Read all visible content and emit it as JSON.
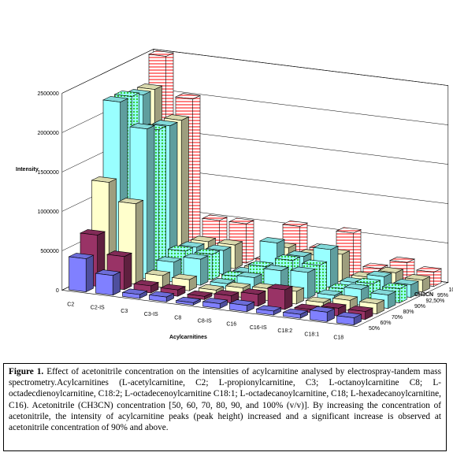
{
  "chart_data": {
    "type": "bar",
    "xlabel": "Acylcarnitines",
    "ylabel": "Intensity",
    "zlabel": "CH3CN",
    "ylim": [
      0,
      2500000
    ],
    "yticks": [
      0,
      500000,
      1000000,
      1500000,
      2000000,
      2500000
    ],
    "categories": [
      "C2",
      "C2-IS",
      "C3",
      "C3-IS",
      "C8",
      "C8-IS",
      "C16",
      "C16-IS",
      "C18:2",
      "C18:1",
      "C18"
    ],
    "series": [
      {
        "name": "50%",
        "color": "#8080ff",
        "values": [
          420000,
          250000,
          50000,
          60000,
          30000,
          60000,
          80000,
          50000,
          50000,
          120000,
          90000
        ]
      },
      {
        "name": "60%",
        "color": "#993366",
        "values": [
          650000,
          420000,
          90000,
          80000,
          40000,
          90000,
          150000,
          250000,
          40000,
          100000,
          100000
        ]
      },
      {
        "name": "70%",
        "color": "#ffffcc",
        "values": [
          1250000,
          1020000,
          150000,
          140000,
          50000,
          120000,
          150000,
          160000,
          60000,
          130000,
          130000
        ]
      },
      {
        "name": "80%",
        "color": "#99ffff",
        "values": [
          2200000,
          1900000,
          250000,
          330000,
          60000,
          180000,
          310000,
          330000,
          80000,
          200000,
          170000
        ]
      },
      {
        "name": "90%",
        "color": "#66ff66",
        "values": [
          2200000,
          1820000,
          320000,
          320000,
          80000,
          250000,
          370000,
          350000,
          90000,
          200000,
          180000
        ]
      },
      {
        "name": "92,50%",
        "color": "#99ffff",
        "values": [
          2150000,
          1800000,
          300000,
          300000,
          60000,
          480000,
          350000,
          480000,
          100000,
          220000,
          160000
        ]
      },
      {
        "name": "95%",
        "color": "#ffffcc",
        "values": [
          2150000,
          1800000,
          300000,
          300000,
          50000,
          350000,
          300000,
          350000,
          100000,
          200000,
          150000
        ]
      },
      {
        "name": "100%",
        "color": "#ff9999",
        "values": [
          2500000,
          2000000,
          500000,
          500000,
          80000,
          550000,
          300000,
          550000,
          140000,
          260000,
          180000
        ]
      }
    ]
  },
  "caption": {
    "label": "Figure 1.",
    "text": "Effect of acetonitrile concentration on the intensities of acylcarnitine analysed by electrospray-tandem mass spectrometry.Acylcarnitines (L-acetylcarnitine, C2; L-propionylcarnitine, C3; L-octanoylcarnitine C8; L-octadecdienoylcarnitine, C18:2; L-octadecenoylcarnitine C18:1; L-octadecanoylcarnitine, C18; L-hexadecanoylcarnitine, C16). Acetonitrile (CH3CN) concentration [50, 60, 70, 80, 90, and 100% (v/v)]. By increasing the concentration of acetonitrile, the intensity of acylcarnitine peaks (peak height) increased and a significant increase is observed at acetonitrile concentration of 90% and above."
  }
}
